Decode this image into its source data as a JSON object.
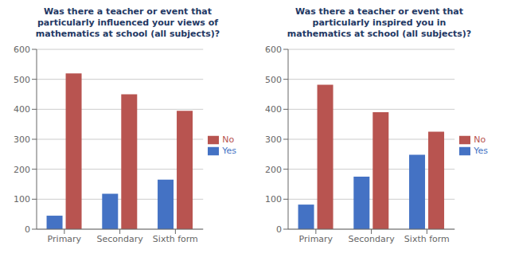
{
  "chart_data": [
    {
      "type": "bar",
      "title": "Was there a teacher or event that\nparticularly influenced your views of\nmathematics at school (all subjects)?",
      "categories": [
        "Primary",
        "Secondary",
        "Sixth form"
      ],
      "series": [
        {
          "name": "Yes",
          "color": "#4472C4",
          "values": [
            45,
            118,
            165
          ]
        },
        {
          "name": "No",
          "color": "#B85450",
          "values": [
            520,
            450,
            395
          ]
        }
      ],
      "ylim": [
        0,
        600
      ],
      "yticks": [
        0,
        100,
        200,
        300,
        400,
        500,
        600
      ],
      "grid": true,
      "legend": "right"
    },
    {
      "type": "bar",
      "title": "Was there a teacher or event that\nparticularly inspired you in\nmathematics at school (all subjects)?",
      "categories": [
        "Primary",
        "Secondary",
        "Sixth form"
      ],
      "series": [
        {
          "name": "Yes",
          "color": "#4472C4",
          "values": [
            82,
            175,
            248
          ]
        },
        {
          "name": "No",
          "color": "#B85450",
          "values": [
            482,
            390,
            325
          ]
        }
      ],
      "ylim": [
        0,
        600
      ],
      "yticks": [
        0,
        100,
        200,
        300,
        400,
        500,
        600
      ],
      "grid": true,
      "legend": "right"
    }
  ]
}
